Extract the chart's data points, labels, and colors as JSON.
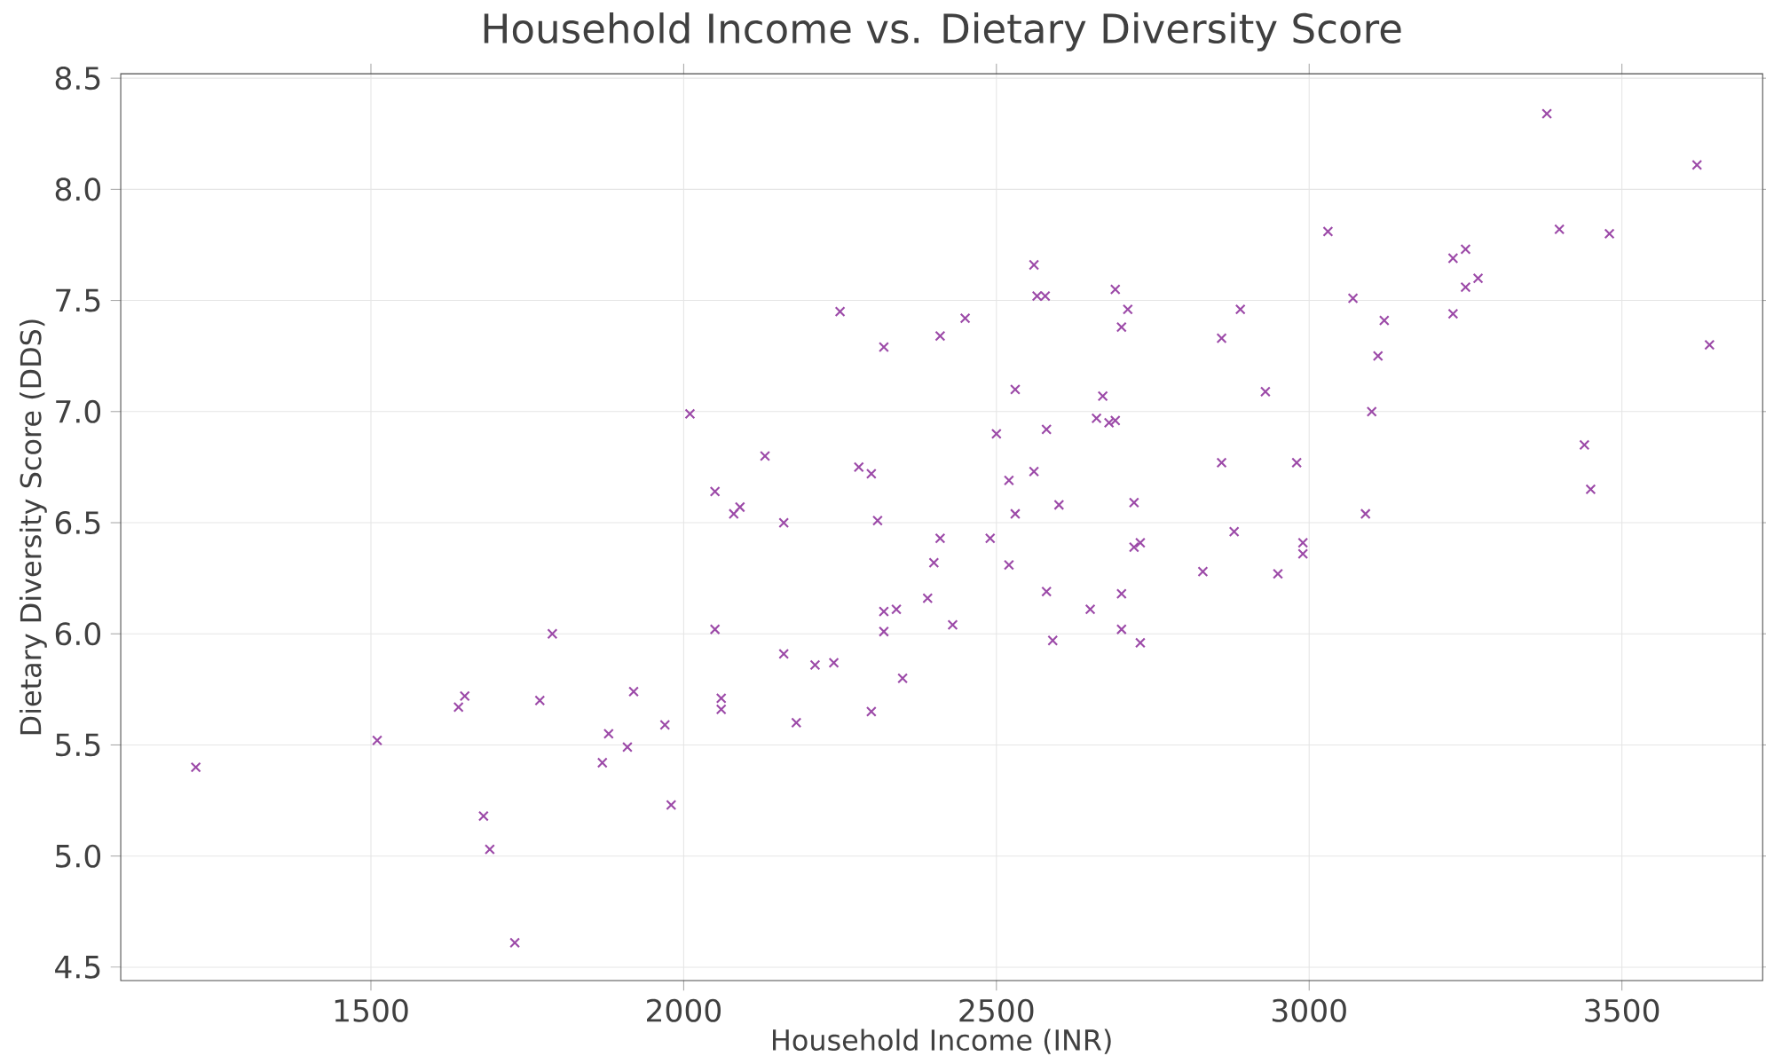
{
  "chart_data": {
    "type": "scatter",
    "title": "Household Income vs. Dietary Diversity Score",
    "xlabel": "Household Income (INR)",
    "ylabel": "Dietary Diversity Score (DDS)",
    "xlim": [
      1100,
      3725
    ],
    "ylim": [
      4.44,
      8.52
    ],
    "xticks": [
      1500,
      2000,
      2500,
      3000,
      3500
    ],
    "yticks": [
      4.5,
      {
        "value": 5,
        "label": "5.0"
      },
      5.5,
      {
        "value": 6,
        "label": "6.0"
      },
      6.5,
      {
        "value": 7,
        "label": "7.0"
      },
      7.5,
      {
        "value": 8,
        "label": "8.0"
      },
      8.5
    ],
    "grid": true,
    "marker": "cross",
    "series": [
      {
        "color": "#9c4aa8",
        "x": [
          1220,
          1510,
          1640,
          1650,
          1770,
          1790,
          1680,
          1690,
          1730,
          1870,
          1880,
          1910,
          1920,
          1970,
          1980,
          2050,
          2060,
          2060,
          2160,
          2180,
          2210,
          2240,
          2300,
          2320,
          2320,
          2010,
          2250,
          2320,
          2050,
          2080,
          2090,
          2130,
          2160,
          2280,
          2300,
          2310,
          3380,
          3620,
          3030,
          3400,
          3480,
          3230,
          3250,
          3270,
          3250,
          3230,
          3070,
          3120,
          3110,
          3100,
          3640,
          3440,
          3450,
          3090,
          2560,
          2565,
          2578,
          2690,
          2710,
          2700,
          2410,
          2450,
          2890,
          2860,
          2930,
          2530,
          2670,
          2660,
          2680,
          2690,
          2500,
          2580,
          2520,
          2560,
          2860,
          2980,
          2410,
          2490,
          2400,
          2530,
          2600,
          2720,
          2880,
          2720,
          2730,
          2990,
          2990,
          2520,
          2830,
          2950,
          2580,
          2700,
          2650,
          2590,
          2700,
          2730,
          2390,
          2430,
          2340,
          2350
        ],
        "values": [
          5.4,
          5.52,
          5.67,
          5.72,
          5.7,
          6.0,
          5.18,
          5.03,
          4.61,
          5.42,
          5.55,
          5.49,
          5.74,
          5.59,
          5.23,
          6.02,
          5.71,
          5.66,
          5.91,
          5.6,
          5.86,
          5.87,
          5.65,
          6.1,
          6.01,
          6.99,
          7.45,
          7.29,
          6.64,
          6.54,
          6.57,
          6.8,
          6.5,
          6.75,
          6.72,
          6.51,
          8.34,
          8.11,
          7.81,
          7.82,
          7.8,
          7.69,
          7.73,
          7.6,
          7.56,
          7.44,
          7.51,
          7.41,
          7.25,
          7.0,
          7.3,
          6.85,
          6.65,
          6.54,
          7.66,
          7.52,
          7.52,
          7.55,
          7.46,
          7.38,
          7.34,
          7.42,
          7.46,
          7.33,
          7.09,
          7.1,
          7.07,
          6.97,
          6.95,
          6.96,
          6.9,
          6.92,
          6.69,
          6.73,
          6.77,
          6.77,
          6.43,
          6.43,
          6.32,
          6.54,
          6.58,
          6.59,
          6.46,
          6.39,
          6.41,
          6.41,
          6.36,
          6.31,
          6.28,
          6.27,
          6.19,
          6.18,
          6.11,
          5.97,
          6.02,
          5.96,
          6.16,
          6.04,
          6.11,
          5.8
        ]
      }
    ]
  }
}
